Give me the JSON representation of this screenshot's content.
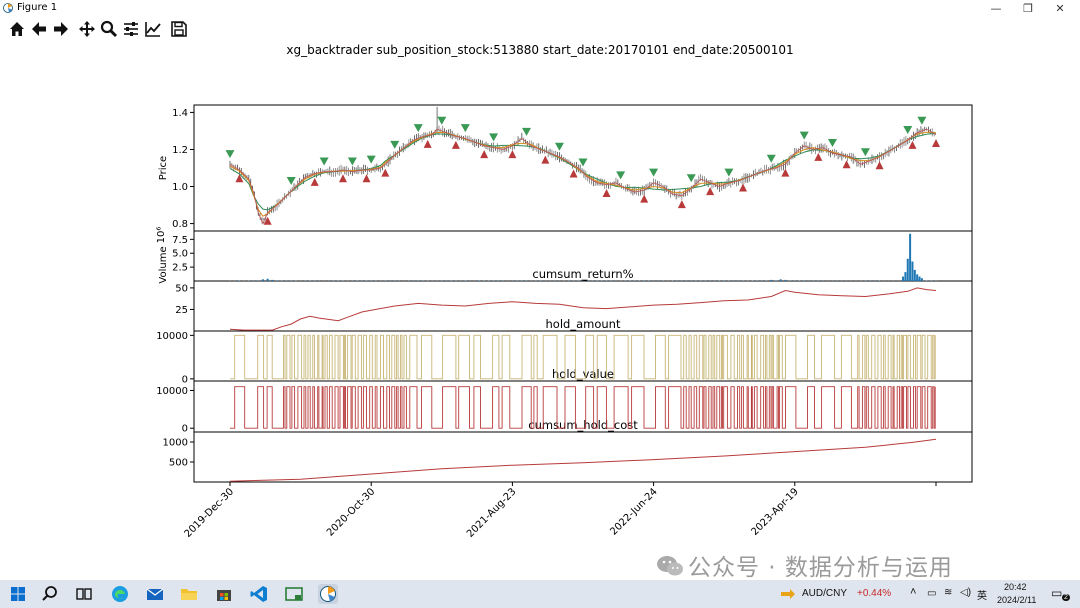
{
  "window": {
    "title": "Figure 1",
    "minimize": "—",
    "restore": "❐",
    "close": "✕"
  },
  "toolbar": {
    "items": [
      "home-icon",
      "back-arrow-icon",
      "forward-arrow-icon",
      "pan-icon",
      "zoom-icon",
      "configure-subplots-icon",
      "edit-axis-icon",
      "save-icon"
    ]
  },
  "chart_data": {
    "type": "line",
    "suptitle": "xg_backtrader sub_position_stock:513880 start_date:20170101 end_date:20500101",
    "x_tick_labels": [
      "2019-Dec-30",
      "2020-Oct-30",
      "2021-Aug-23",
      "2022-Jun-24",
      "2023-Apr-19"
    ],
    "panels": [
      {
        "name": "price",
        "ylabel": "Price",
        "yticks": [
          "0.8",
          "1.0",
          "1.2",
          "1.4"
        ],
        "ylim": [
          0.76,
          1.44
        ],
        "points": [
          [
            0,
            1.12
          ],
          [
            4,
            1.09
          ],
          [
            8,
            1.04
          ],
          [
            10,
            0.97
          ],
          [
            12,
            0.86
          ],
          [
            14,
            0.8
          ],
          [
            16,
            0.86
          ],
          [
            20,
            0.9
          ],
          [
            24,
            0.95
          ],
          [
            28,
            1.0
          ],
          [
            32,
            1.05
          ],
          [
            36,
            1.07
          ],
          [
            40,
            1.08
          ],
          [
            44,
            1.08
          ],
          [
            48,
            1.09
          ],
          [
            52,
            1.08
          ],
          [
            56,
            1.09
          ],
          [
            60,
            1.09
          ],
          [
            64,
            1.1
          ],
          [
            66,
            1.12
          ],
          [
            70,
            1.17
          ],
          [
            74,
            1.21
          ],
          [
            78,
            1.25
          ],
          [
            82,
            1.27
          ],
          [
            86,
            1.28
          ],
          [
            88,
            1.31
          ],
          [
            92,
            1.29
          ],
          [
            96,
            1.27
          ],
          [
            100,
            1.26
          ],
          [
            104,
            1.24
          ],
          [
            108,
            1.22
          ],
          [
            112,
            1.21
          ],
          [
            116,
            1.2
          ],
          [
            120,
            1.22
          ],
          [
            124,
            1.26
          ],
          [
            128,
            1.22
          ],
          [
            132,
            1.2
          ],
          [
            136,
            1.18
          ],
          [
            140,
            1.16
          ],
          [
            144,
            1.13
          ],
          [
            148,
            1.1
          ],
          [
            152,
            1.05
          ],
          [
            156,
            1.02
          ],
          [
            160,
            1.01
          ],
          [
            164,
            1.02
          ],
          [
            168,
            0.99
          ],
          [
            172,
            0.97
          ],
          [
            176,
            0.98
          ],
          [
            180,
            1.02
          ],
          [
            184,
            1.0
          ],
          [
            188,
            0.96
          ],
          [
            192,
            0.95
          ],
          [
            196,
            0.99
          ],
          [
            200,
            1.04
          ],
          [
            204,
            1.02
          ],
          [
            208,
            1.0
          ],
          [
            212,
            1.02
          ],
          [
            216,
            1.03
          ],
          [
            220,
            1.05
          ],
          [
            224,
            1.07
          ],
          [
            228,
            1.09
          ],
          [
            232,
            1.1
          ],
          [
            236,
            1.12
          ],
          [
            240,
            1.18
          ],
          [
            244,
            1.22
          ],
          [
            248,
            1.2
          ],
          [
            252,
            1.21
          ],
          [
            256,
            1.18
          ],
          [
            260,
            1.17
          ],
          [
            264,
            1.16
          ],
          [
            268,
            1.12
          ],
          [
            272,
            1.14
          ],
          [
            276,
            1.16
          ],
          [
            280,
            1.19
          ],
          [
            284,
            1.22
          ],
          [
            288,
            1.25
          ],
          [
            292,
            1.29
          ],
          [
            296,
            1.31
          ],
          [
            300,
            1.28
          ]
        ],
        "sell_markers_x": [
          0,
          26,
          40,
          52,
          60,
          70,
          80,
          90,
          100,
          112,
          126,
          140,
          150,
          166,
          180,
          196,
          212,
          230,
          244,
          256,
          270,
          288,
          294
        ],
        "buy_markers_x": [
          4,
          16,
          36,
          48,
          58,
          66,
          84,
          96,
          108,
          120,
          134,
          146,
          160,
          176,
          192,
          204,
          218,
          236,
          250,
          262,
          276,
          290,
          300
        ]
      },
      {
        "name": "volume",
        "ylabel": "Volume",
        "scale_label": "10⁶",
        "yticks": [
          "2.5",
          "5.0",
          "7.5"
        ],
        "ylim": [
          0,
          9
        ],
        "bars": [
          [
            14,
            0.3
          ],
          [
            16,
            0.4
          ],
          [
            18,
            0.2
          ],
          [
            230,
            0.2
          ],
          [
            234,
            0.3
          ],
          [
            236,
            0.2
          ],
          [
            286,
            0.8
          ],
          [
            287,
            1.6
          ],
          [
            288,
            4.0
          ],
          [
            289,
            8.5
          ],
          [
            290,
            3.5
          ],
          [
            291,
            2.0
          ],
          [
            292,
            1.2
          ],
          [
            293,
            0.8
          ],
          [
            294,
            0.5
          ]
        ]
      },
      {
        "name": "cumsum_return",
        "title": "cumsum_return%",
        "yticks": [
          "25",
          "50"
        ],
        "ylim": [
          0,
          58
        ],
        "points": [
          [
            0,
            2
          ],
          [
            6,
            1
          ],
          [
            18,
            1
          ],
          [
            22,
            5
          ],
          [
            26,
            8
          ],
          [
            30,
            14
          ],
          [
            34,
            17
          ],
          [
            38,
            15
          ],
          [
            46,
            12
          ],
          [
            50,
            16
          ],
          [
            56,
            22
          ],
          [
            62,
            25
          ],
          [
            70,
            29
          ],
          [
            80,
            32
          ],
          [
            90,
            30
          ],
          [
            100,
            29
          ],
          [
            110,
            32
          ],
          [
            120,
            34
          ],
          [
            130,
            32
          ],
          [
            140,
            31
          ],
          [
            150,
            27
          ],
          [
            160,
            26
          ],
          [
            170,
            28
          ],
          [
            180,
            30
          ],
          [
            190,
            31
          ],
          [
            200,
            33
          ],
          [
            210,
            35
          ],
          [
            220,
            36
          ],
          [
            230,
            40
          ],
          [
            236,
            47
          ],
          [
            240,
            45
          ],
          [
            250,
            42
          ],
          [
            260,
            41
          ],
          [
            270,
            40
          ],
          [
            280,
            43
          ],
          [
            288,
            46
          ],
          [
            292,
            50
          ],
          [
            296,
            48
          ],
          [
            300,
            47
          ]
        ]
      },
      {
        "name": "hold_amount",
        "title": "hold_amount",
        "yticks": [
          "0",
          "10000"
        ],
        "ylim": [
          -500,
          11000
        ],
        "color": "#c8b575"
      },
      {
        "name": "hold_value",
        "title": "hold_value",
        "yticks": [
          "0",
          "10000"
        ],
        "ylim": [
          -1000,
          12500
        ],
        "color": "#b83a3a"
      },
      {
        "name": "cumsum_hold_cost",
        "title": "cumsum_hold_cost",
        "yticks": [
          "500",
          "1000"
        ],
        "ylim": [
          0,
          1250
        ],
        "points": [
          [
            0,
            20
          ],
          [
            30,
            70
          ],
          [
            60,
            200
          ],
          [
            90,
            330
          ],
          [
            120,
            420
          ],
          [
            150,
            480
          ],
          [
            180,
            560
          ],
          [
            210,
            650
          ],
          [
            240,
            760
          ],
          [
            270,
            870
          ],
          [
            290,
            990
          ],
          [
            300,
            1070
          ]
        ]
      }
    ]
  },
  "taskbar": {
    "pair": "AUD/CNY",
    "change": "+0.44%",
    "lang": "英",
    "time": "20:42",
    "date": "2024/2/11",
    "badge": "2"
  },
  "watermark": "公众号 · 数据分析与运用"
}
